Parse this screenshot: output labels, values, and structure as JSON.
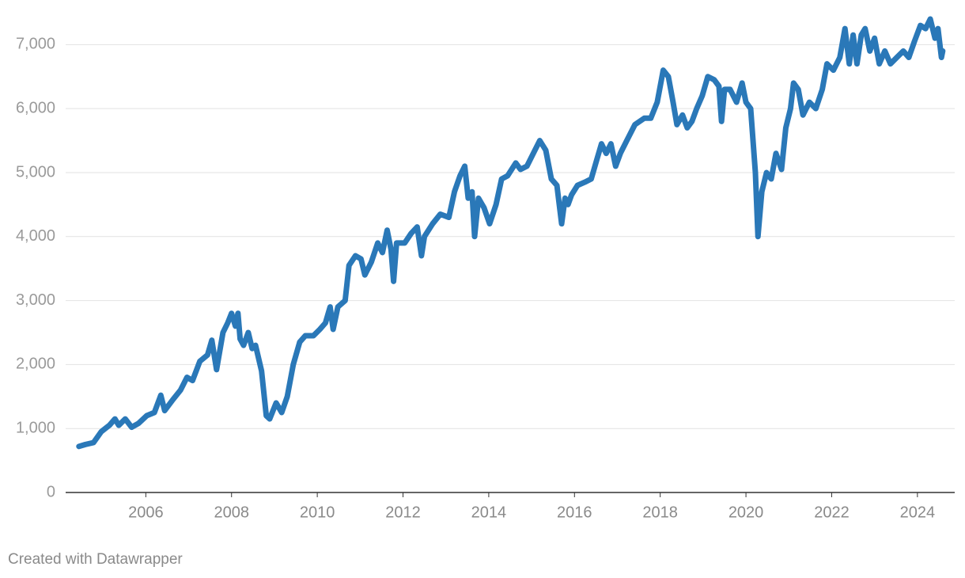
{
  "chart_data": {
    "type": "line",
    "source": "Created with Datawrapper",
    "x": [
      2004.44,
      2004.59,
      2004.78,
      2004.96,
      2005.15,
      2005.28,
      2005.37,
      2005.52,
      2005.67,
      2005.83,
      2006.02,
      2006.2,
      2006.35,
      2006.44,
      2006.63,
      2006.81,
      2006.96,
      2007.09,
      2007.26,
      2007.44,
      2007.54,
      2007.65,
      2007.8,
      2007.91,
      2008.0,
      2008.09,
      2008.15,
      2008.2,
      2008.28,
      2008.39,
      2008.48,
      2008.56,
      2008.7,
      2008.81,
      2008.89,
      2009.04,
      2009.17,
      2009.3,
      2009.44,
      2009.59,
      2009.72,
      2009.91,
      2010.06,
      2010.19,
      2010.3,
      2010.37,
      2010.48,
      2010.65,
      2010.74,
      2010.89,
      2011.02,
      2011.11,
      2011.26,
      2011.41,
      2011.52,
      2011.63,
      2011.72,
      2011.78,
      2011.85,
      2012.04,
      2012.19,
      2012.33,
      2012.43,
      2012.5,
      2012.69,
      2012.87,
      2013.07,
      2013.2,
      2013.33,
      2013.44,
      2013.52,
      2013.61,
      2013.67,
      2013.76,
      2013.89,
      2014.02,
      2014.17,
      2014.3,
      2014.44,
      2014.63,
      2014.74,
      2014.89,
      2015.04,
      2015.19,
      2015.33,
      2015.46,
      2015.59,
      2015.7,
      2015.78,
      2015.85,
      2015.93,
      2016.07,
      2016.24,
      2016.39,
      2016.52,
      2016.63,
      2016.74,
      2016.85,
      2016.96,
      2017.07,
      2017.22,
      2017.41,
      2017.63,
      2017.78,
      2017.93,
      2018.07,
      2018.19,
      2018.3,
      2018.39,
      2018.52,
      2018.63,
      2018.74,
      2018.85,
      2018.98,
      2019.11,
      2019.26,
      2019.37,
      2019.43,
      2019.5,
      2019.63,
      2019.78,
      2019.91,
      2020.0,
      2020.11,
      2020.22,
      2020.28,
      2020.37,
      2020.48,
      2020.59,
      2020.7,
      2020.83,
      2020.93,
      2021.04,
      2021.11,
      2021.22,
      2021.33,
      2021.48,
      2021.63,
      2021.78,
      2021.89,
      2022.04,
      2022.19,
      2022.31,
      2022.41,
      2022.5,
      2022.59,
      2022.69,
      2022.78,
      2022.89,
      2023.0,
      2023.11,
      2023.24,
      2023.37,
      2023.52,
      2023.67,
      2023.8,
      2023.93,
      2024.07,
      2024.19,
      2024.3,
      2024.41,
      2024.48,
      2024.56,
      2024.59
    ],
    "values": [
      720,
      750,
      780,
      950,
      1050,
      1150,
      1050,
      1150,
      1020,
      1080,
      1200,
      1250,
      1520,
      1280,
      1450,
      1600,
      1800,
      1750,
      2050,
      2150,
      2380,
      1920,
      2500,
      2650,
      2800,
      2600,
      2800,
      2400,
      2300,
      2500,
      2250,
      2300,
      1900,
      1200,
      1150,
      1400,
      1250,
      1500,
      2000,
      2350,
      2450,
      2450,
      2550,
      2650,
      2900,
      2550,
      2900,
      3000,
      3550,
      3700,
      3650,
      3400,
      3600,
      3900,
      3750,
      4100,
      3800,
      3300,
      3900,
      3900,
      4050,
      4150,
      3700,
      4000,
      4200,
      4350,
      4300,
      4700,
      4950,
      5100,
      4600,
      4700,
      4000,
      4600,
      4450,
      4200,
      4500,
      4900,
      4950,
      5150,
      5050,
      5100,
      5300,
      5500,
      5350,
      4900,
      4800,
      4200,
      4600,
      4500,
      4650,
      4800,
      4850,
      4900,
      5200,
      5450,
      5300,
      5450,
      5100,
      5300,
      5500,
      5750,
      5850,
      5850,
      6100,
      6600,
      6500,
      6100,
      5750,
      5900,
      5700,
      5800,
      6000,
      6200,
      6500,
      6450,
      6350,
      5800,
      6300,
      6300,
      6100,
      6400,
      6100,
      6000,
      5000,
      4000,
      4700,
      5000,
      4900,
      5300,
      5050,
      5700,
      6000,
      6400,
      6300,
      5900,
      6100,
      6000,
      6300,
      6700,
      6600,
      6800,
      7250,
      6700,
      7150,
      6700,
      7150,
      7250,
      6900,
      7100,
      6700,
      6900,
      6700,
      6800,
      6900,
      6800,
      7050,
      7300,
      7250,
      7400,
      7100,
      7250,
      6800,
      6900
    ],
    "color": "#2a78b8",
    "xlim": [
      2004.13,
      2024.87
    ],
    "xticks": [
      2006,
      2008,
      2010,
      2012,
      2014,
      2016,
      2018,
      2020,
      2022,
      2024
    ],
    "ylim": [
      0,
      7450
    ],
    "yticks": [
      0,
      {
        "value": 1000,
        "label": "1,000"
      },
      {
        "value": 2000,
        "label": "2,000"
      },
      {
        "value": 3000,
        "label": "3,000"
      },
      {
        "value": 4000,
        "label": "4,000"
      },
      {
        "value": 5000,
        "label": "5,000"
      },
      {
        "value": 6000,
        "label": "6,000"
      },
      {
        "value": 7000,
        "label": "7,000"
      }
    ],
    "grid": true
  }
}
